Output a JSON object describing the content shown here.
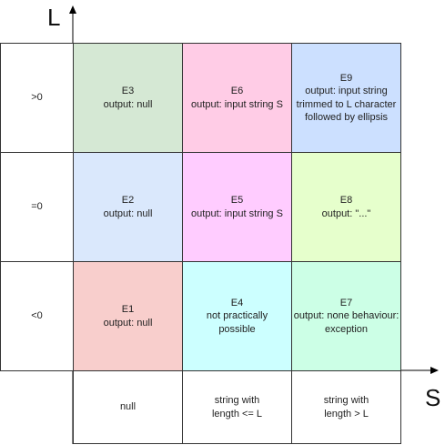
{
  "axes": {
    "y_title": "L",
    "x_title": "S"
  },
  "row_labels": [
    ">0",
    "=0",
    "<0"
  ],
  "col_labels": [
    "null",
    "string with\nlength <= L",
    "string with\nlength > L"
  ],
  "cells": {
    "E3": {
      "id": "E3",
      "text": "output: null",
      "color": "#d5e8d4"
    },
    "E6": {
      "id": "E6",
      "text": "output: input string S",
      "color": "#ffcce6"
    },
    "E9": {
      "id": "E9",
      "text": "output: input string trimmed to L character followed by ellipsis",
      "color": "#cce0ff"
    },
    "E2": {
      "id": "E2",
      "text": "output: null",
      "color": "#dae8fc"
    },
    "E5": {
      "id": "E5",
      "text": "output: input string S",
      "color": "#ffccff"
    },
    "E8": {
      "id": "E8",
      "text": "output: \"...\"",
      "color": "#e6ffcc"
    },
    "E1": {
      "id": "E1",
      "text": "output: null",
      "color": "#f8cecc"
    },
    "E4": {
      "id": "E4",
      "text": "not practically possible",
      "color": "#ccffff"
    },
    "E7": {
      "id": "E7",
      "text": "output: none behaviour: exception",
      "color": "#ccffe6"
    }
  }
}
